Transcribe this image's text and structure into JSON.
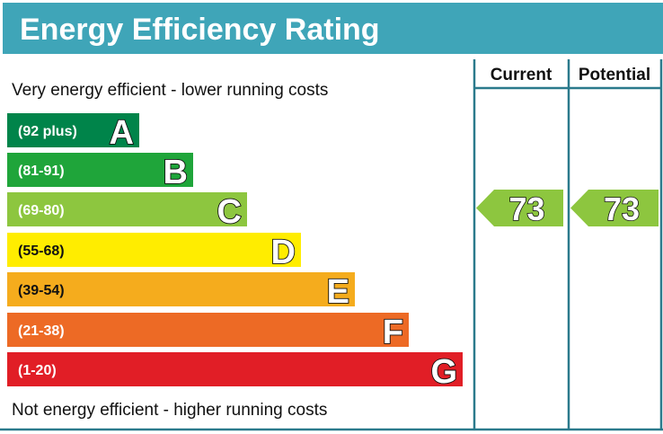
{
  "chart_data": {
    "type": "bar",
    "title": "Energy Efficiency Rating",
    "top_note": "Very energy efficient - lower running costs",
    "bottom_note": "Not energy efficient - higher running costs",
    "columns": [
      "Current",
      "Potential"
    ],
    "bands": [
      {
        "letter": "A",
        "range": "(92 plus)",
        "color": "#00844a"
      },
      {
        "letter": "B",
        "range": "(81-91)",
        "color": "#1fa53a"
      },
      {
        "letter": "C",
        "range": "(69-80)",
        "color": "#8dc63f"
      },
      {
        "letter": "D",
        "range": "(55-68)",
        "color": "#ffed00"
      },
      {
        "letter": "E",
        "range": "(39-54)",
        "color": "#f5ac1d"
      },
      {
        "letter": "F",
        "range": "(21-38)",
        "color": "#ed6a25"
      },
      {
        "letter": "G",
        "range": "(1-20)",
        "color": "#e11e26"
      }
    ],
    "current": {
      "value": "73",
      "band": "C",
      "color": "#8dc63f"
    },
    "potential": {
      "value": "73",
      "band": "C",
      "color": "#8dc63f"
    }
  },
  "colors": {
    "header": "#3fa5b8",
    "grid": "#2b7a8c"
  }
}
